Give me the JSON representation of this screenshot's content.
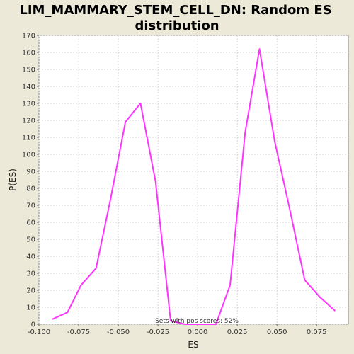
{
  "chart_data": {
    "type": "line",
    "title_lines": [
      "LIM_MAMMARY_STEM_CELL_DN: Random ES",
      "distribution"
    ],
    "xlabel": "ES",
    "ylabel": "P(ES)",
    "xlim": [
      -0.1,
      0.095
    ],
    "ylim": [
      0,
      170
    ],
    "x_ticks": [
      -0.1,
      -0.075,
      -0.05,
      -0.025,
      0.0,
      0.025,
      0.05,
      0.075
    ],
    "x_tick_labels": [
      "-0.100",
      "-0.075",
      "-0.050",
      "-0.025",
      "0.000",
      "0.025",
      "0.050",
      "0.075"
    ],
    "y_ticks": [
      0,
      10,
      20,
      30,
      40,
      50,
      60,
      70,
      80,
      90,
      100,
      110,
      120,
      130,
      140,
      150,
      160,
      170
    ],
    "y_tick_labels": [
      "0",
      "10",
      "20",
      "30",
      "40",
      "50",
      "60",
      "70",
      "80",
      "90",
      "100",
      "110",
      "120",
      "130",
      "140",
      "150",
      "160",
      "170"
    ],
    "grid": true,
    "series": [
      {
        "color": "#ff33ff",
        "x": [
          -0.0915,
          -0.082,
          -0.0735,
          -0.064,
          -0.055,
          -0.0455,
          -0.036,
          -0.0265,
          -0.017,
          -0.008,
          0.0015,
          0.0115,
          0.0205,
          0.03,
          0.039,
          0.0485,
          0.058,
          0.0675,
          0.077,
          0.0865
        ],
        "y": [
          3,
          7,
          23,
          33,
          73,
          119,
          130,
          84,
          2,
          0,
          0,
          0,
          23,
          113,
          162,
          108,
          68,
          26,
          16,
          8
        ]
      }
    ],
    "annotation": "Sets with pos scores: 52%"
  }
}
